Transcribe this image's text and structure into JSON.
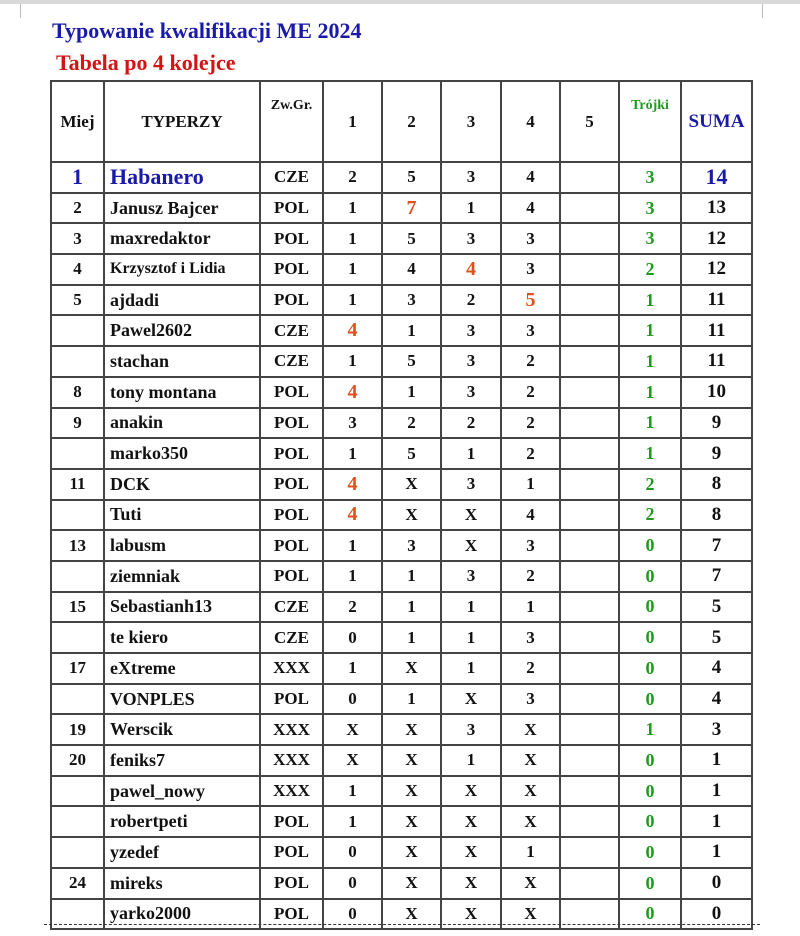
{
  "document": {
    "title": "Typowanie kwalifikacji ME 2024",
    "subtitle": "Tabela po 4 kolejce"
  },
  "colors": {
    "title": "#1a1aa8",
    "subtitle": "#d21414",
    "highlight": "#e0501c",
    "trojki": "#1f9a1f"
  },
  "table": {
    "headers": [
      "Miej",
      "TYPERZY",
      "Zw.Gr.",
      "1",
      "2",
      "3",
      "4",
      "5",
      "Trójki",
      "SUMA"
    ],
    "rows": [
      {
        "place": "1",
        "name": "Habanero",
        "group": "CZE",
        "r": [
          "2",
          "5",
          "3",
          "4",
          ""
        ],
        "trojki": "3",
        "suma": "14",
        "hl": []
      },
      {
        "place": "2",
        "name": "Janusz Bajcer",
        "group": "POL",
        "r": [
          "1",
          "7",
          "1",
          "4",
          ""
        ],
        "trojki": "3",
        "suma": "13",
        "hl": [
          1
        ]
      },
      {
        "place": "3",
        "name": "maxredaktor",
        "group": "POL",
        "r": [
          "1",
          "5",
          "3",
          "3",
          ""
        ],
        "trojki": "3",
        "suma": "12",
        "hl": []
      },
      {
        "place": "4",
        "name": "Krzysztof i Lidia",
        "group": "POL",
        "r": [
          "1",
          "4",
          "4",
          "3",
          ""
        ],
        "trojki": "2",
        "suma": "12",
        "hl": [
          2
        ]
      },
      {
        "place": "5",
        "name": "ajdadi",
        "group": "POL",
        "r": [
          "1",
          "3",
          "2",
          "5",
          ""
        ],
        "trojki": "1",
        "suma": "11",
        "hl": [
          3
        ]
      },
      {
        "place": "",
        "name": "Pawel2602",
        "group": "CZE",
        "r": [
          "4",
          "1",
          "3",
          "3",
          ""
        ],
        "trojki": "1",
        "suma": "11",
        "hl": [
          0
        ]
      },
      {
        "place": "",
        "name": "stachan",
        "group": "CZE",
        "r": [
          "1",
          "5",
          "3",
          "2",
          ""
        ],
        "trojki": "1",
        "suma": "11",
        "hl": []
      },
      {
        "place": "8",
        "name": "tony montana",
        "group": "POL",
        "r": [
          "4",
          "1",
          "3",
          "2",
          ""
        ],
        "trojki": "1",
        "suma": "10",
        "hl": [
          0
        ]
      },
      {
        "place": "9",
        "name": "anakin",
        "group": "POL",
        "r": [
          "3",
          "2",
          "2",
          "2",
          ""
        ],
        "trojki": "1",
        "suma": "9",
        "hl": []
      },
      {
        "place": "",
        "name": "marko350",
        "group": "POL",
        "r": [
          "1",
          "5",
          "1",
          "2",
          ""
        ],
        "trojki": "1",
        "suma": "9",
        "hl": []
      },
      {
        "place": "11",
        "name": "DCK",
        "group": "POL",
        "r": [
          "4",
          "X",
          "3",
          "1",
          ""
        ],
        "trojki": "2",
        "suma": "8",
        "hl": [
          0
        ]
      },
      {
        "place": "",
        "name": "Tuti",
        "group": "POL",
        "r": [
          "4",
          "X",
          "X",
          "4",
          ""
        ],
        "trojki": "2",
        "suma": "8",
        "hl": [
          0
        ]
      },
      {
        "place": "13",
        "name": "labusm",
        "group": "POL",
        "r": [
          "1",
          "3",
          "X",
          "3",
          ""
        ],
        "trojki": "0",
        "suma": "7",
        "hl": []
      },
      {
        "place": "",
        "name": "ziemniak",
        "group": "POL",
        "r": [
          "1",
          "1",
          "3",
          "2",
          ""
        ],
        "trojki": "0",
        "suma": "7",
        "hl": []
      },
      {
        "place": "15",
        "name": "Sebastianh13",
        "group": "CZE",
        "r": [
          "2",
          "1",
          "1",
          "1",
          ""
        ],
        "trojki": "0",
        "suma": "5",
        "hl": []
      },
      {
        "place": "",
        "name": "te kiero",
        "group": "CZE",
        "r": [
          "0",
          "1",
          "1",
          "3",
          ""
        ],
        "trojki": "0",
        "suma": "5",
        "hl": []
      },
      {
        "place": "17",
        "name": "eXtreme",
        "group": "XXX",
        "r": [
          "1",
          "X",
          "1",
          "2",
          ""
        ],
        "trojki": "0",
        "suma": "4",
        "hl": []
      },
      {
        "place": "",
        "name": "VONPLES",
        "group": "POL",
        "r": [
          "0",
          "1",
          "X",
          "3",
          ""
        ],
        "trojki": "0",
        "suma": "4",
        "hl": []
      },
      {
        "place": "19",
        "name": "Werscik",
        "group": "XXX",
        "r": [
          "X",
          "X",
          "3",
          "X",
          ""
        ],
        "trojki": "1",
        "suma": "3",
        "hl": []
      },
      {
        "place": "20",
        "name": "feniks7",
        "group": "XXX",
        "r": [
          "X",
          "X",
          "1",
          "X",
          ""
        ],
        "trojki": "0",
        "suma": "1",
        "hl": []
      },
      {
        "place": "",
        "name": "pawel_nowy",
        "group": "XXX",
        "r": [
          "1",
          "X",
          "X",
          "X",
          ""
        ],
        "trojki": "0",
        "suma": "1",
        "hl": []
      },
      {
        "place": "",
        "name": "robertpeti",
        "group": "POL",
        "r": [
          "1",
          "X",
          "X",
          "X",
          ""
        ],
        "trojki": "0",
        "suma": "1",
        "hl": []
      },
      {
        "place": "",
        "name": "yzedef",
        "group": "POL",
        "r": [
          "0",
          "X",
          "X",
          "1",
          ""
        ],
        "trojki": "0",
        "suma": "1",
        "hl": []
      },
      {
        "place": "24",
        "name": "mireks",
        "group": "POL",
        "r": [
          "0",
          "X",
          "X",
          "X",
          ""
        ],
        "trojki": "0",
        "suma": "0",
        "hl": []
      },
      {
        "place": "",
        "name": "yarko2000",
        "group": "POL",
        "r": [
          "0",
          "X",
          "X",
          "X",
          ""
        ],
        "trojki": "0",
        "suma": "0",
        "hl": []
      }
    ]
  }
}
